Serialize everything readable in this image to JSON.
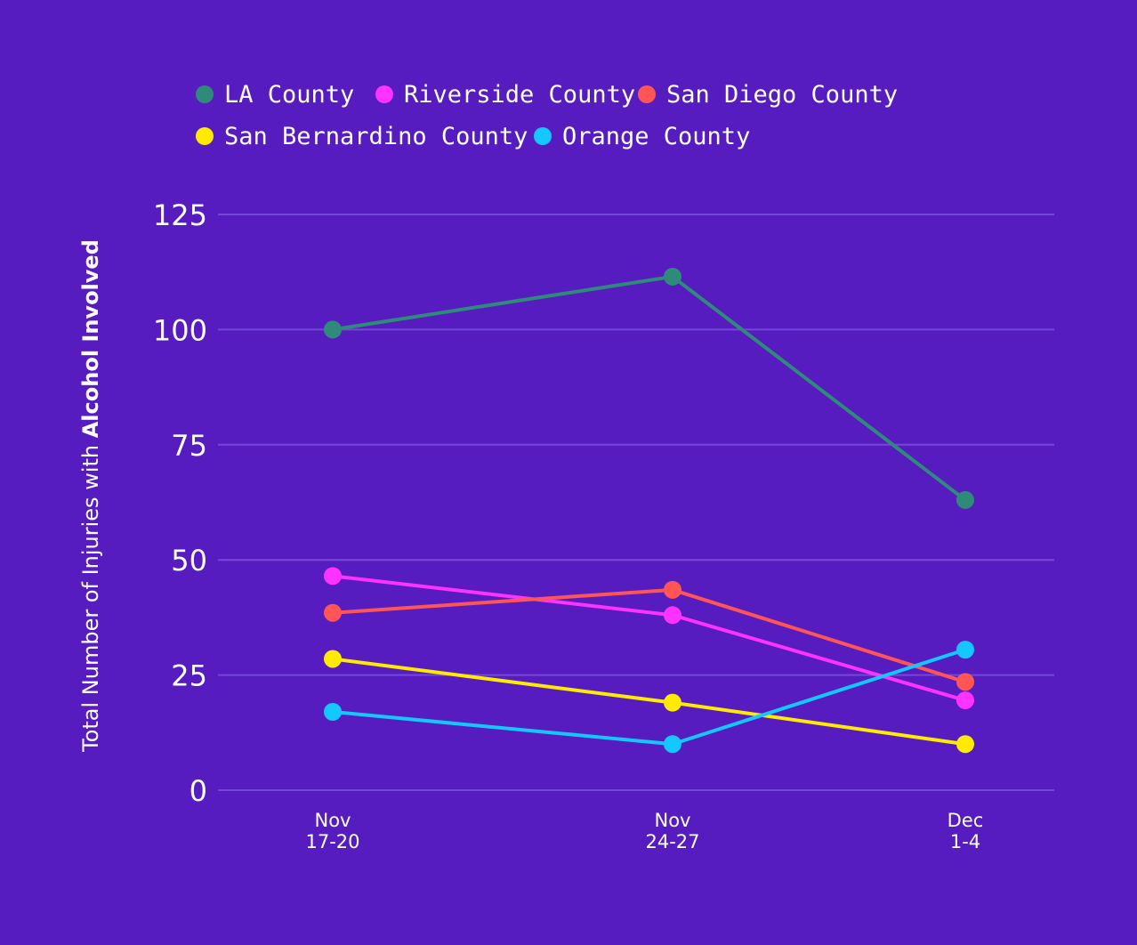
{
  "colors": {
    "background": "#561CC0",
    "grid": "#7448D6"
  },
  "chart_data": {
    "type": "line",
    "title": "",
    "ylabel": "Total Number of Injuries with",
    "ylabel_bold": "Alcohol Involved",
    "categories": [
      [
        "Nov",
        "17-20"
      ],
      [
        "Nov",
        "24-27"
      ],
      [
        "Dec",
        "1-4"
      ]
    ],
    "y_ticks": [
      "0",
      "25",
      "50",
      "75",
      "100",
      "125"
    ],
    "ylim": [
      0,
      125
    ],
    "grid": true,
    "legend_position": "top",
    "series": [
      {
        "name": "LA County",
        "color": "#2E8B7A",
        "values": [
          100,
          111.5,
          63
        ]
      },
      {
        "name": "Riverside County",
        "color": "#FF33FF",
        "values": [
          46.5,
          38,
          19.5
        ]
      },
      {
        "name": "San Diego County",
        "color": "#FF5555",
        "values": [
          38.5,
          43.5,
          23.5
        ]
      },
      {
        "name": "San Bernardino County",
        "color": "#FFEB00",
        "values": [
          28.5,
          19,
          10
        ]
      },
      {
        "name": "Orange County",
        "color": "#14C8FF",
        "values": [
          17,
          10,
          30.5
        ]
      }
    ]
  }
}
